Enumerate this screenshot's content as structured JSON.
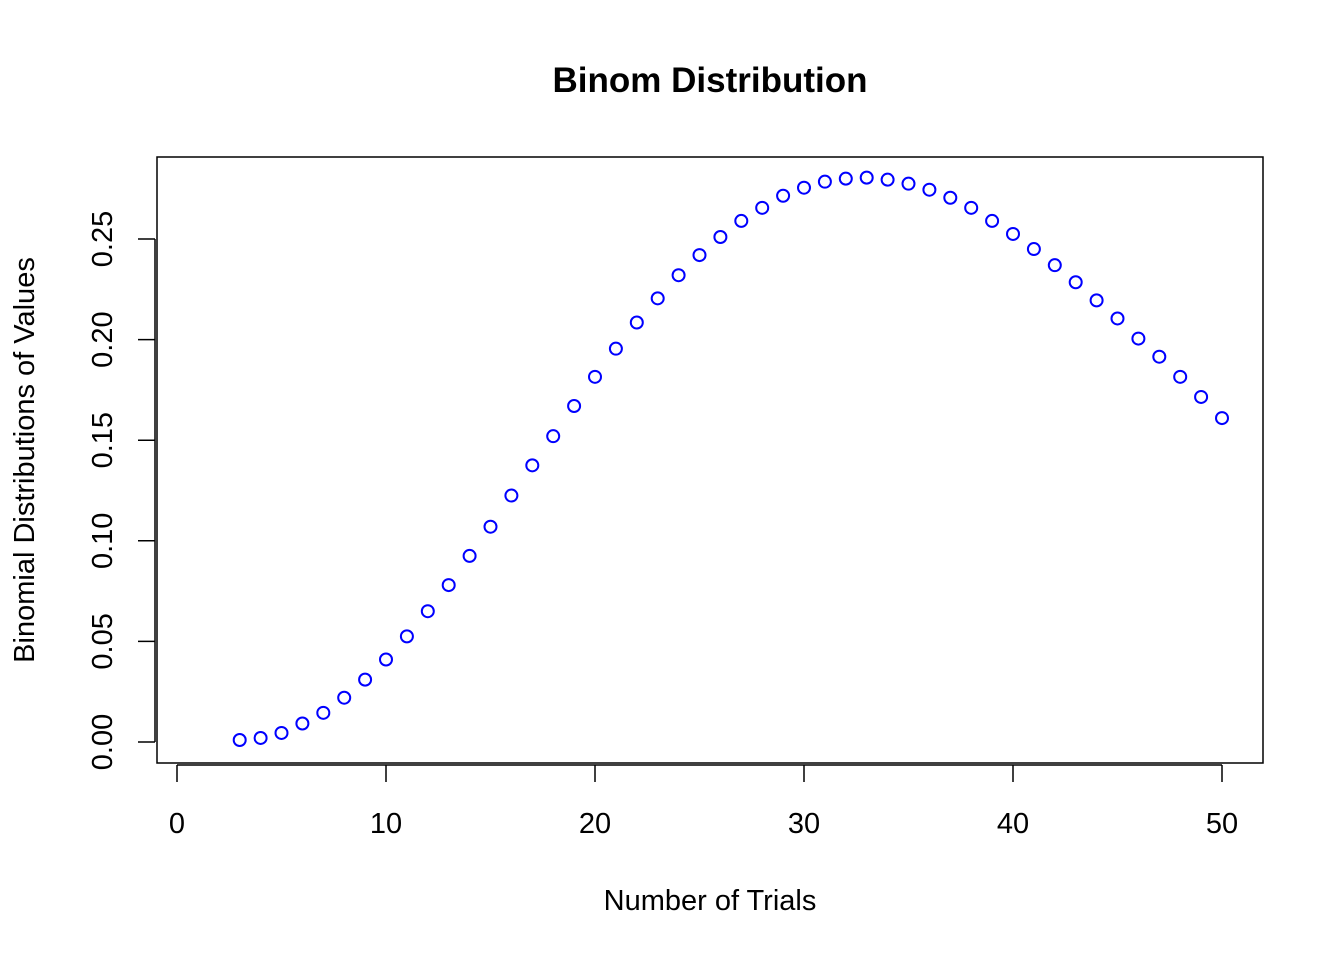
{
  "chart_data": {
    "type": "scatter",
    "title": "Binom Distribution",
    "xlabel": "Number of Trials",
    "ylabel": "Binomial Distributions of Values",
    "xlim": [
      0,
      50
    ],
    "ylim": [
      0,
      0.28
    ],
    "x_ticks": [
      0,
      10,
      20,
      30,
      40,
      50
    ],
    "y_ticks": [
      0.0,
      0.05,
      0.1,
      0.15,
      0.2,
      0.25
    ],
    "x_tick_labels": [
      "0",
      "10",
      "20",
      "30",
      "40",
      "50"
    ],
    "y_tick_labels": [
      "0.00",
      "0.05",
      "0.10",
      "0.15",
      "0.20",
      "0.25"
    ],
    "grid": false,
    "legend": "none",
    "point_color": "#0000ff",
    "marker": "open-circle",
    "series": [
      {
        "x": [
          3,
          4,
          5,
          6,
          7,
          8,
          9,
          10,
          11,
          12,
          13,
          14,
          15,
          16,
          17,
          18,
          19,
          20,
          21,
          22,
          23,
          24,
          25,
          26,
          27,
          28,
          29,
          30,
          31,
          32,
          33,
          34,
          35,
          36,
          37,
          38,
          39,
          40,
          41,
          42,
          43,
          44,
          45,
          46,
          47,
          48,
          49,
          50
        ],
        "y": [
          0.001,
          0.002,
          0.0045,
          0.0092,
          0.0145,
          0.022,
          0.031,
          0.041,
          0.0525,
          0.065,
          0.078,
          0.0925,
          0.107,
          0.1225,
          0.1375,
          0.152,
          0.167,
          0.1815,
          0.1955,
          0.2085,
          0.2205,
          0.232,
          0.242,
          0.251,
          0.259,
          0.2655,
          0.2715,
          0.2755,
          0.2785,
          0.28,
          0.2805,
          0.2795,
          0.2775,
          0.2745,
          0.2705,
          0.2655,
          0.259,
          0.2525,
          0.245,
          0.237,
          0.2285,
          0.2195,
          0.2105,
          0.2005,
          0.1915,
          0.1815,
          0.1715,
          0.161
        ]
      }
    ]
  }
}
